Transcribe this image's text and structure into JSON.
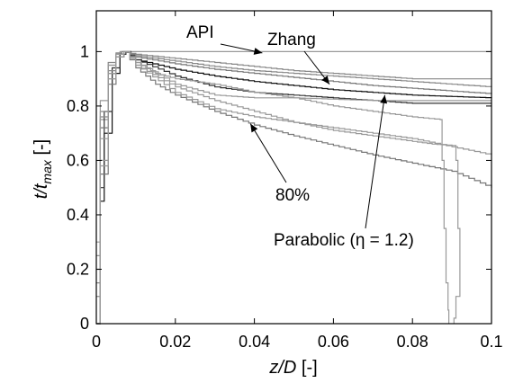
{
  "chart_data": {
    "type": "line",
    "xlabel": {
      "italic": "z/D",
      "plain": " [-]"
    },
    "ylabel": {
      "italic": "t/t",
      "sub": "max",
      "plain": " [-]"
    },
    "xlim": [
      0,
      0.1
    ],
    "ylim": [
      0,
      1.15
    ],
    "xticks": [
      0,
      0.02,
      0.04,
      0.06,
      0.08,
      0.1
    ],
    "xtick_labels": [
      "0",
      "0.02",
      "0.04",
      "0.06",
      "0.08",
      "0.1"
    ],
    "yticks": [
      0,
      0.2,
      0.4,
      0.6,
      0.8,
      1
    ],
    "ytick_labels": [
      "0",
      "0.2",
      "0.4",
      "0.6",
      "0.8",
      "1"
    ],
    "grid": false,
    "annotations": [
      {
        "text": "API",
        "arrow_to": [
          0.042,
          0.995
        ]
      },
      {
        "text": "Zhang",
        "arrow_to": [
          0.059,
          0.88
        ]
      },
      {
        "text": "80%",
        "arrow_to": [
          0.039,
          0.735
        ]
      },
      {
        "text": "Parabolic (η = 1.2)",
        "arrow_to": [
          0.073,
          0.84
        ]
      }
    ],
    "series": [
      {
        "color": "#999999",
        "x": [
          0,
          0.001,
          0.003,
          0.005,
          0.006,
          0.007,
          0.1
        ],
        "y": [
          0.1,
          0.75,
          0.95,
          0.99,
          1.0,
          1.0,
          1.0
        ]
      },
      {
        "color": "#111111",
        "x": [
          0,
          0.001,
          0.002,
          0.004,
          0.006,
          0.007,
          0.01,
          0.02,
          0.03,
          0.04,
          0.05,
          0.06,
          0.07,
          0.08,
          0.09,
          0.1
        ],
        "y": [
          0,
          0.45,
          0.7,
          0.92,
          0.99,
          1.0,
          0.97,
          0.935,
          0.91,
          0.89,
          0.875,
          0.86,
          0.85,
          0.84,
          0.835,
          0.83
        ]
      },
      {
        "color": "#333333",
        "x": [
          0,
          0.001,
          0.002,
          0.004,
          0.006,
          0.0075,
          0.01,
          0.02,
          0.03,
          0.04,
          0.05,
          0.06,
          0.07,
          0.08,
          0.09,
          0.1
        ],
        "y": [
          0,
          0.5,
          0.78,
          0.94,
          0.99,
          1.0,
          0.97,
          0.91,
          0.87,
          0.85,
          0.84,
          0.83,
          0.82,
          0.81,
          0.81,
          0.81
        ]
      },
      {
        "color": "#777777",
        "x": [
          0,
          0.001,
          0.003,
          0.005,
          0.007,
          0.01,
          0.02,
          0.03,
          0.04,
          0.05,
          0.06,
          0.07,
          0.08,
          0.09,
          0.1
        ],
        "y": [
          0.2,
          0.72,
          0.92,
          0.98,
          1.0,
          0.98,
          0.955,
          0.935,
          0.92,
          0.905,
          0.89,
          0.875,
          0.865,
          0.855,
          0.845
        ]
      },
      {
        "color": "#888888",
        "x": [
          0,
          0.001,
          0.003,
          0.005,
          0.007,
          0.01,
          0.02,
          0.03,
          0.04,
          0.05,
          0.06,
          0.07,
          0.08,
          0.09,
          0.1
        ],
        "y": [
          0.25,
          0.76,
          0.93,
          0.99,
          1.0,
          0.985,
          0.965,
          0.945,
          0.93,
          0.92,
          0.91,
          0.9,
          0.89,
          0.88,
          0.87
        ]
      },
      {
        "color": "#888888",
        "x": [
          0,
          0.001,
          0.003,
          0.005,
          0.0065,
          0.01,
          0.02,
          0.03,
          0.04,
          0.05,
          0.06,
          0.07,
          0.08,
          0.09,
          0.1
        ],
        "y": [
          0.15,
          0.78,
          0.96,
          0.995,
          1.0,
          0.99,
          0.975,
          0.96,
          0.945,
          0.93,
          0.92,
          0.91,
          0.9,
          0.9,
          0.9
        ]
      },
      {
        "color": "#777777",
        "x": [
          0,
          0.001,
          0.003,
          0.005,
          0.007,
          0.01,
          0.015,
          0.02,
          0.03,
          0.04,
          0.05,
          0.06,
          0.07,
          0.08,
          0.09,
          0.1
        ],
        "y": [
          0,
          0.55,
          0.88,
          0.98,
          1.0,
          0.94,
          0.88,
          0.84,
          0.78,
          0.73,
          0.69,
          0.655,
          0.62,
          0.59,
          0.56,
          0.5
        ]
      },
      {
        "color": "#999999",
        "x": [
          0,
          0.001,
          0.003,
          0.005,
          0.007,
          0.01,
          0.015,
          0.02,
          0.025,
          0.03,
          0.04,
          0.05,
          0.06,
          0.07,
          0.08,
          0.087,
          0.0875,
          0.088,
          0.0885,
          0.089,
          0.0892
        ],
        "y": [
          0,
          0.6,
          0.9,
          0.98,
          1.0,
          0.96,
          0.92,
          0.9,
          0.89,
          0.88,
          0.85,
          0.83,
          0.8,
          0.78,
          0.76,
          0.75,
          0.6,
          0.35,
          0.15,
          0.05,
          0
        ]
      },
      {
        "color": "#999999",
        "x": [
          0,
          0.001,
          0.003,
          0.005,
          0.007,
          0.01,
          0.02,
          0.03,
          0.04,
          0.05,
          0.06,
          0.07,
          0.08,
          0.085,
          0.09,
          0.091,
          0.0915,
          0.092,
          0.091,
          0.0905
        ],
        "y": [
          0,
          0.58,
          0.9,
          0.98,
          1.0,
          0.95,
          0.87,
          0.82,
          0.78,
          0.74,
          0.71,
          0.69,
          0.67,
          0.66,
          0.655,
          0.6,
          0.35,
          0.1,
          0.02,
          0
        ]
      },
      {
        "color": "#999999",
        "x": [
          0,
          0.001,
          0.003,
          0.005,
          0.007,
          0.01,
          0.02,
          0.03,
          0.04,
          0.05,
          0.06,
          0.07,
          0.08,
          0.09,
          0.1
        ],
        "y": [
          0.3,
          0.82,
          0.95,
          0.99,
          1.0,
          0.96,
          0.88,
          0.84,
          0.83,
          0.83,
          0.825,
          0.82,
          0.82,
          0.82,
          0.82
        ]
      },
      {
        "color": "#999999",
        "x": [
          0,
          0.001,
          0.003,
          0.005,
          0.007,
          0.01,
          0.02,
          0.03,
          0.04,
          0.05,
          0.06,
          0.07,
          0.08,
          0.09,
          0.1
        ],
        "y": [
          0.1,
          0.68,
          0.92,
          0.98,
          1.0,
          0.95,
          0.85,
          0.79,
          0.76,
          0.74,
          0.72,
          0.7,
          0.68,
          0.65,
          0.62
        ]
      }
    ]
  }
}
